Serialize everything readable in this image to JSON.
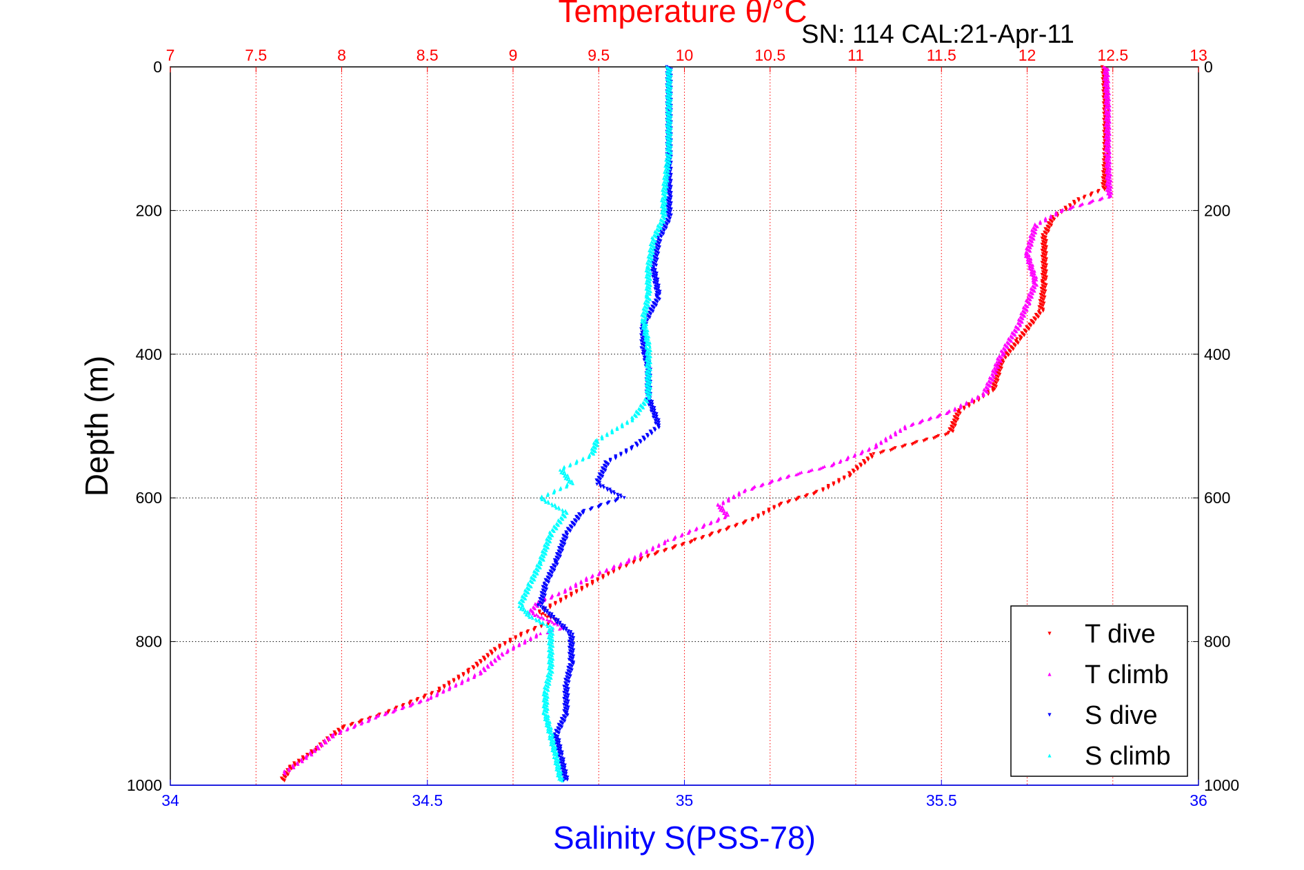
{
  "chart_data": {
    "type": "scatter",
    "title": "Temperature θ/°C",
    "annotation": "SN: 114  CAL:21-Apr-11",
    "xlabel": "Salinity S(PSS-78)",
    "ylabel": "Depth (m)",
    "x_salinity_lim": [
      34,
      36
    ],
    "x_temperature_lim": [
      7,
      13
    ],
    "y_depth_lim": [
      0,
      1000
    ],
    "y_reversed": true,
    "grid": true,
    "legend_position": "bottom-right",
    "ticks": {
      "salinity": [
        "34",
        "34.5",
        "35",
        "35.5",
        "36"
      ],
      "temperature": [
        "7",
        "7.5",
        "8",
        "8.5",
        "9",
        "9.5",
        "10",
        "10.5",
        "11",
        "11.5",
        "12",
        "12.5",
        "13"
      ],
      "depth_left": [
        "0",
        "200",
        "400",
        "600",
        "800",
        "1000"
      ],
      "depth_right": [
        "0",
        "200",
        "400",
        "600",
        "800",
        "1000"
      ]
    },
    "series": [
      {
        "name": "T dive",
        "axis": "temperature",
        "color": "#ff0000",
        "marker": "triangle-down",
        "points": [
          [
            12.45,
            0
          ],
          [
            12.46,
            60
          ],
          [
            12.46,
            120
          ],
          [
            12.45,
            170
          ],
          [
            12.3,
            185
          ],
          [
            12.15,
            210
          ],
          [
            12.1,
            235
          ],
          [
            12.1,
            300
          ],
          [
            12.08,
            340
          ],
          [
            11.95,
            380
          ],
          [
            11.85,
            410
          ],
          [
            11.8,
            450
          ],
          [
            11.6,
            480
          ],
          [
            11.55,
            510
          ],
          [
            11.1,
            540
          ],
          [
            10.95,
            570
          ],
          [
            10.8,
            590
          ],
          [
            10.55,
            610
          ],
          [
            10.4,
            630
          ],
          [
            10.05,
            660
          ],
          [
            9.8,
            680
          ],
          [
            9.6,
            700
          ],
          [
            9.45,
            720
          ],
          [
            9.3,
            740
          ],
          [
            9.15,
            760
          ],
          [
            9.25,
            770
          ],
          [
            9.05,
            790
          ],
          [
            8.9,
            810
          ],
          [
            8.75,
            840
          ],
          [
            8.55,
            870
          ],
          [
            8.25,
            900
          ],
          [
            8.0,
            920
          ],
          [
            7.85,
            950
          ],
          [
            7.7,
            975
          ],
          [
            7.65,
            995
          ]
        ]
      },
      {
        "name": "T climb",
        "axis": "temperature",
        "color": "#ff00ff",
        "marker": "triangle-up",
        "points": [
          [
            12.46,
            0
          ],
          [
            12.47,
            60
          ],
          [
            12.47,
            120
          ],
          [
            12.48,
            180
          ],
          [
            12.2,
            200
          ],
          [
            12.05,
            220
          ],
          [
            12.0,
            260
          ],
          [
            12.05,
            300
          ],
          [
            12.0,
            330
          ],
          [
            11.95,
            360
          ],
          [
            11.85,
            400
          ],
          [
            11.8,
            430
          ],
          [
            11.75,
            455
          ],
          [
            11.55,
            480
          ],
          [
            11.3,
            500
          ],
          [
            11.1,
            530
          ],
          [
            10.85,
            555
          ],
          [
            10.6,
            570
          ],
          [
            10.35,
            590
          ],
          [
            10.2,
            610
          ],
          [
            10.25,
            625
          ],
          [
            9.9,
            660
          ],
          [
            9.65,
            690
          ],
          [
            9.45,
            710
          ],
          [
            9.3,
            730
          ],
          [
            9.15,
            745
          ],
          [
            9.1,
            760
          ],
          [
            9.3,
            780
          ],
          [
            9.15,
            790
          ],
          [
            8.95,
            815
          ],
          [
            8.8,
            845
          ],
          [
            8.5,
            880
          ],
          [
            8.2,
            905
          ],
          [
            7.95,
            930
          ],
          [
            7.8,
            960
          ],
          [
            7.65,
            985
          ]
        ]
      },
      {
        "name": "S dive",
        "axis": "salinity",
        "color": "#0000ff",
        "marker": "triangle-down",
        "points": [
          [
            34.97,
            0
          ],
          [
            34.97,
            60
          ],
          [
            34.97,
            120
          ],
          [
            34.97,
            180
          ],
          [
            34.97,
            210
          ],
          [
            34.95,
            240
          ],
          [
            34.94,
            280
          ],
          [
            34.95,
            320
          ],
          [
            34.92,
            360
          ],
          [
            34.92,
            390
          ],
          [
            34.93,
            420
          ],
          [
            34.93,
            460
          ],
          [
            34.95,
            500
          ],
          [
            34.9,
            530
          ],
          [
            34.85,
            550
          ],
          [
            34.83,
            580
          ],
          [
            34.88,
            600
          ],
          [
            34.8,
            620
          ],
          [
            34.77,
            650
          ],
          [
            34.75,
            690
          ],
          [
            34.73,
            720
          ],
          [
            34.72,
            750
          ],
          [
            34.75,
            770
          ],
          [
            34.78,
            790
          ],
          [
            34.78,
            830
          ],
          [
            34.77,
            860
          ],
          [
            34.77,
            900
          ],
          [
            34.75,
            930
          ],
          [
            34.76,
            960
          ],
          [
            34.77,
            995
          ]
        ]
      },
      {
        "name": "S climb",
        "axis": "salinity",
        "color": "#00ffff",
        "marker": "triangle-up",
        "points": [
          [
            34.97,
            0
          ],
          [
            34.97,
            60
          ],
          [
            34.97,
            120
          ],
          [
            34.96,
            180
          ],
          [
            34.96,
            210
          ],
          [
            34.94,
            240
          ],
          [
            34.93,
            280
          ],
          [
            34.93,
            320
          ],
          [
            34.92,
            350
          ],
          [
            34.93,
            390
          ],
          [
            34.93,
            420
          ],
          [
            34.93,
            460
          ],
          [
            34.9,
            490
          ],
          [
            34.83,
            520
          ],
          [
            34.82,
            540
          ],
          [
            34.76,
            560
          ],
          [
            34.78,
            580
          ],
          [
            34.72,
            600
          ],
          [
            34.77,
            620
          ],
          [
            34.74,
            650
          ],
          [
            34.72,
            690
          ],
          [
            34.7,
            720
          ],
          [
            34.68,
            750
          ],
          [
            34.7,
            765
          ],
          [
            34.74,
            780
          ],
          [
            34.74,
            810
          ],
          [
            34.74,
            840
          ],
          [
            34.73,
            870
          ],
          [
            34.73,
            900
          ],
          [
            34.74,
            930
          ],
          [
            34.75,
            960
          ],
          [
            34.76,
            995
          ]
        ]
      }
    ]
  }
}
